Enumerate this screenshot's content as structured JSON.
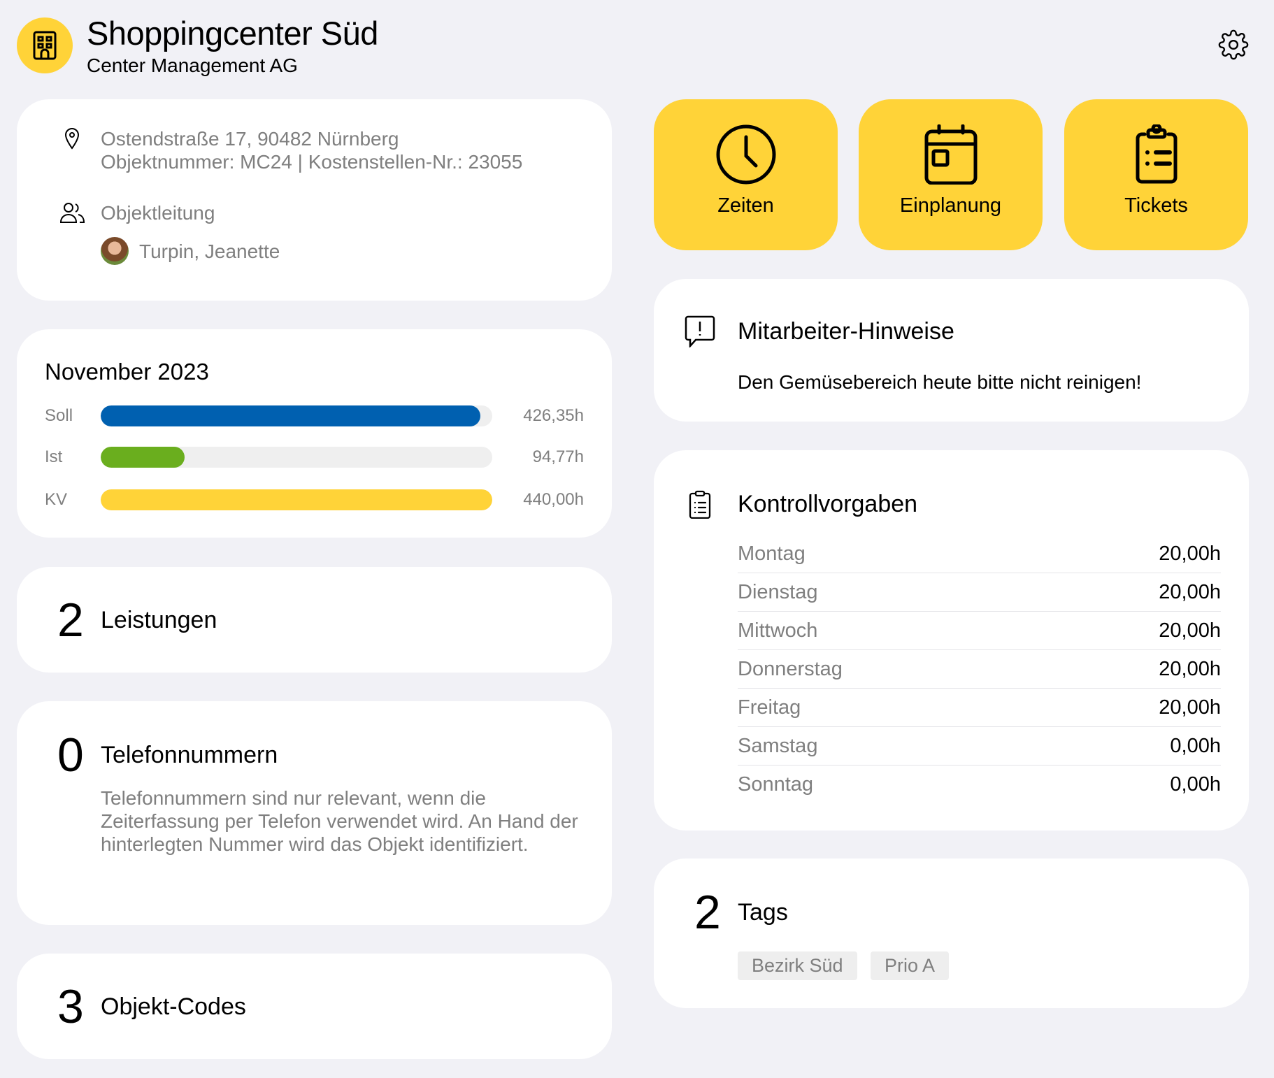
{
  "header": {
    "title": "Shoppingcenter Süd",
    "subtitle": "Center Management AG",
    "logo_icon": "building-icon",
    "settings_icon": "gear-icon"
  },
  "info": {
    "address": "Ostendstraße 17, 90482 Nürnberg",
    "ids": "Objektnummer: MC24 | Kostenstellen-Nr.: 23055",
    "manager_label": "Objektleitung",
    "manager_name": "Turpin, Jeanette"
  },
  "hours": {
    "title": "November 2023",
    "bars": [
      {
        "label": "Soll",
        "value": "426,35h",
        "fraction": 0.969,
        "color": "#0060B0"
      },
      {
        "label": "Ist",
        "value": "94,77h",
        "fraction": 0.215,
        "color": "#6AAE1E"
      },
      {
        "label": "KV",
        "value": "440,00h",
        "fraction": 1.0,
        "color": "#FFD338"
      }
    ]
  },
  "leistungen": {
    "count": "2",
    "label": "Leistungen"
  },
  "telefon": {
    "count": "0",
    "label": "Telefonnummern",
    "description": "Telefonnummern sind nur relevant, wenn die Zeiterfassung per Telefon verwendet wird. An Hand der hinterlegten Nummer wird das Objekt identifiziert."
  },
  "codes": {
    "count": "3",
    "label": "Objekt-Codes"
  },
  "actions": [
    {
      "label": "Zeiten",
      "icon": "clock-icon"
    },
    {
      "label": "Einplanung",
      "icon": "calendar-icon"
    },
    {
      "label": "Tickets",
      "icon": "clipboard-list-icon"
    }
  ],
  "hinweise": {
    "title": "Mitarbeiter-Hinweise",
    "text": "Den Gemüsebereich heute bitte nicht reinigen!"
  },
  "kontroll": {
    "title": "Kontrollvorgaben",
    "rows": [
      {
        "day": "Montag",
        "value": "20,00h"
      },
      {
        "day": "Dienstag",
        "value": "20,00h"
      },
      {
        "day": "Mittwoch",
        "value": "20,00h"
      },
      {
        "day": "Donnerstag",
        "value": "20,00h"
      },
      {
        "day": "Freitag",
        "value": "20,00h"
      },
      {
        "day": "Samstag",
        "value": "0,00h"
      },
      {
        "day": "Sonntag",
        "value": "0,00h"
      }
    ]
  },
  "tags": {
    "count": "2",
    "label": "Tags",
    "items": [
      "Bezirk Süd",
      "Prio A"
    ]
  },
  "colors": {
    "accent": "#FFD338",
    "background": "#f1f1f6"
  }
}
